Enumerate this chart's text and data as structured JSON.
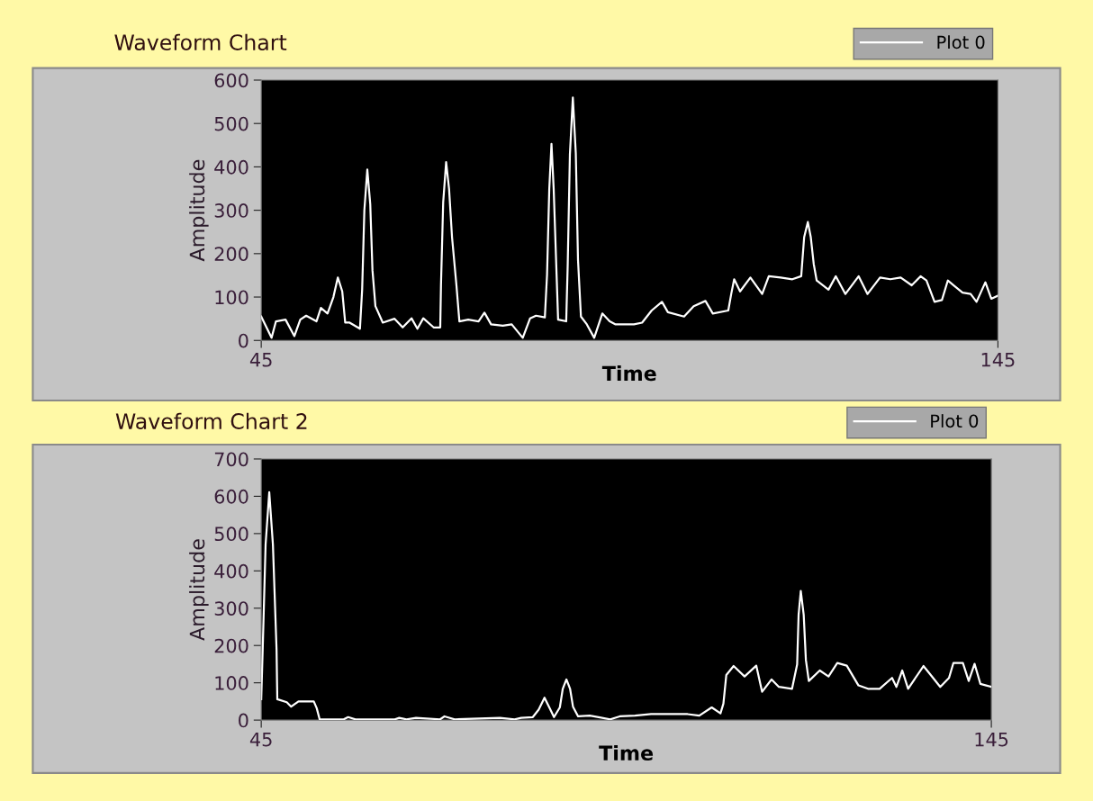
{
  "chart_data": [
    {
      "type": "line",
      "title": "Waveform Chart",
      "xlabel": "Time",
      "ylabel": "Amplitude",
      "xlim": [
        45,
        145
      ],
      "ylim": [
        0,
        600
      ],
      "xticks": [
        45,
        145
      ],
      "yticks": [
        0,
        100,
        200,
        300,
        400,
        500,
        600
      ],
      "legend": "top right",
      "grid": false,
      "series": [
        {
          "name": "Plot 0",
          "color": "#ffffff",
          "x": [
            45,
            46.4,
            47.0,
            48.3,
            49.5,
            50.3,
            51.1,
            52.5,
            53.1,
            54.0,
            54.8,
            55.4,
            56.0,
            56.4,
            57.0,
            58.4,
            58.7,
            59.0,
            59.4,
            59.8,
            60.1,
            60.5,
            61.5,
            63.1,
            64.2,
            65.4,
            66.2,
            67.0,
            68.4,
            69.3,
            69.4,
            69.7,
            70.1,
            70.5,
            70.9,
            71.5,
            71.9,
            73.1,
            74.5,
            75.3,
            76.2,
            77.8,
            79.0,
            80.5,
            81.5,
            82.3,
            83.5,
            83.8,
            84.1,
            84.4,
            84.7,
            85.1,
            85.3,
            86.4,
            86.6,
            86.9,
            87.3,
            87.7,
            88.0,
            88.4,
            89.2,
            90.2,
            91.3,
            92.3,
            93.1,
            95.6,
            96.7,
            98.0,
            99.4,
            100.2,
            102.4,
            103.7,
            105.3,
            106.3,
            108.4,
            108.8,
            109.2,
            110.0,
            111.4,
            113.0,
            113.9,
            115.5,
            117.1,
            118.3,
            118.7,
            119.2,
            119.6,
            120.0,
            120.4,
            122.0,
            123.0,
            124.3,
            126.1,
            127.3,
            129.0,
            130.4,
            131.8,
            133.3,
            134.5,
            135.3,
            136.4,
            137.4,
            138.2,
            139.0,
            140.2,
            141.3,
            142.1,
            143.3,
            144.1,
            145
          ],
          "values": [
            55,
            6,
            44,
            48,
            10,
            48,
            57,
            44,
            75,
            62,
            100,
            145,
            113,
            41,
            41,
            27,
            117,
            300,
            394,
            314,
            162,
            79,
            41,
            50,
            30,
            51,
            27,
            51,
            30,
            30,
            127,
            318,
            411,
            349,
            238,
            127,
            44,
            48,
            44,
            64,
            37,
            34,
            37,
            6,
            51,
            57,
            53,
            152,
            349,
            453,
            349,
            148,
            48,
            44,
            172,
            428,
            560,
            432,
            186,
            55,
            37,
            6,
            62,
            44,
            37,
            37,
            41,
            69,
            89,
            65,
            55,
            79,
            91,
            62,
            69,
            107,
            141,
            113,
            145,
            107,
            148,
            145,
            141,
            148,
            238,
            273,
            238,
            176,
            138,
            117,
            148,
            107,
            148,
            107,
            145,
            141,
            145,
            127,
            148,
            138,
            89,
            93,
            138,
            127,
            110,
            107,
            89,
            134,
            96,
            103
          ]
        }
      ]
    },
    {
      "type": "line",
      "title": "Waveform Chart 2",
      "xlabel": "Time",
      "ylabel": "Amplitude",
      "xlim": [
        45,
        145
      ],
      "ylim": [
        0,
        700
      ],
      "xticks": [
        45,
        145
      ],
      "yticks": [
        0,
        100,
        200,
        300,
        400,
        500,
        600,
        700
      ],
      "legend": "top right",
      "grid": false,
      "series": [
        {
          "name": "Plot 0",
          "color": "#ffffff",
          "x": [
            45.0,
            45.2,
            45.6,
            46.1,
            46.6,
            47.1,
            47.2,
            48.5,
            49.1,
            50.1,
            52.2,
            52.6,
            53.0,
            56.3,
            56.9,
            57.9,
            63.3,
            63.9,
            64.9,
            66.2,
            69.5,
            70.1,
            71.5,
            77.7,
            79.7,
            80.6,
            82.2,
            83.0,
            83.8,
            84.5,
            85.1,
            85.9,
            86.3,
            86.8,
            87.3,
            87.7,
            88.4,
            90.0,
            91.2,
            92.8,
            94.1,
            96.2,
            98.4,
            103.4,
            105.0,
            106.7,
            107.9,
            108.3,
            108.7,
            109.7,
            111.2,
            112.8,
            113.6,
            114.9,
            115.9,
            117.7,
            118.4,
            118.6,
            118.9,
            119.3,
            119.6,
            120.0,
            121.5,
            122.7,
            123.9,
            125.2,
            126.8,
            128.1,
            129.7,
            131.4,
            132.0,
            132.8,
            133.6,
            135.7,
            136.7,
            138.0,
            139.2,
            139.8,
            141.1,
            141.9,
            142.7,
            143.5,
            145.0
          ],
          "values": [
            56,
            189,
            471,
            611,
            471,
            189,
            56,
            48,
            36,
            50,
            50,
            32,
            2,
            2,
            8,
            2,
            2,
            6,
            2,
            6,
            2,
            10,
            2,
            6,
            2,
            6,
            8,
            28,
            60,
            32,
            8,
            34,
            84,
            109,
            84,
            36,
            10,
            12,
            8,
            2,
            10,
            12,
            16,
            16,
            12,
            34,
            18,
            44,
            121,
            145,
            117,
            146,
            76,
            109,
            89,
            84,
            149,
            282,
            346,
            282,
            161,
            105,
            133,
            117,
            153,
            146,
            93,
            84,
            84,
            113,
            89,
            133,
            84,
            145,
            121,
            89,
            113,
            153,
            153,
            105,
            151,
            97,
            89
          ]
        }
      ]
    }
  ]
}
